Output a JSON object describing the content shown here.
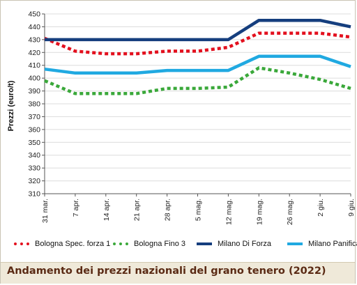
{
  "chart_data": {
    "type": "line",
    "title": "Andamento dei prezzi nazionali del grano tenero (2022)",
    "xlabel": "",
    "ylabel": "Prezzi (euro/t)",
    "ylim": [
      310,
      450
    ],
    "yticks": [
      310,
      320,
      330,
      340,
      350,
      360,
      370,
      380,
      390,
      400,
      410,
      420,
      430,
      440,
      450
    ],
    "categories": [
      "31 mar.",
      "7 apr.",
      "14 apr.",
      "21 apr.",
      "28 apr.",
      "5 mag.",
      "12 mag.",
      "19 mag.",
      "26 mag.",
      "2 giu.",
      "9 giu."
    ],
    "grid": "horizontal",
    "legend_position": "bottom",
    "series": [
      {
        "name": "Bologna Spec. forza 1",
        "color": "#e3101e",
        "style": "dotted",
        "values": [
          431,
          421,
          419,
          419,
          421,
          421,
          424,
          435,
          435,
          435,
          432
        ]
      },
      {
        "name": "Bologna Fino 3",
        "color": "#3aa83a",
        "style": "dotted",
        "values": [
          398,
          388,
          388,
          388,
          392,
          392,
          393,
          408,
          404,
          399,
          392
        ]
      },
      {
        "name": "Milano Di Forza",
        "color": "#153e7e",
        "style": "solid",
        "values": [
          430,
          430,
          430,
          430,
          430,
          430,
          430,
          445,
          445,
          445,
          440
        ]
      },
      {
        "name": "Milano Panificabile",
        "color": "#20a9e1",
        "style": "solid",
        "values": [
          407,
          404,
          404,
          404,
          406,
          406,
          406,
          417,
          417,
          417,
          409
        ]
      }
    ]
  }
}
